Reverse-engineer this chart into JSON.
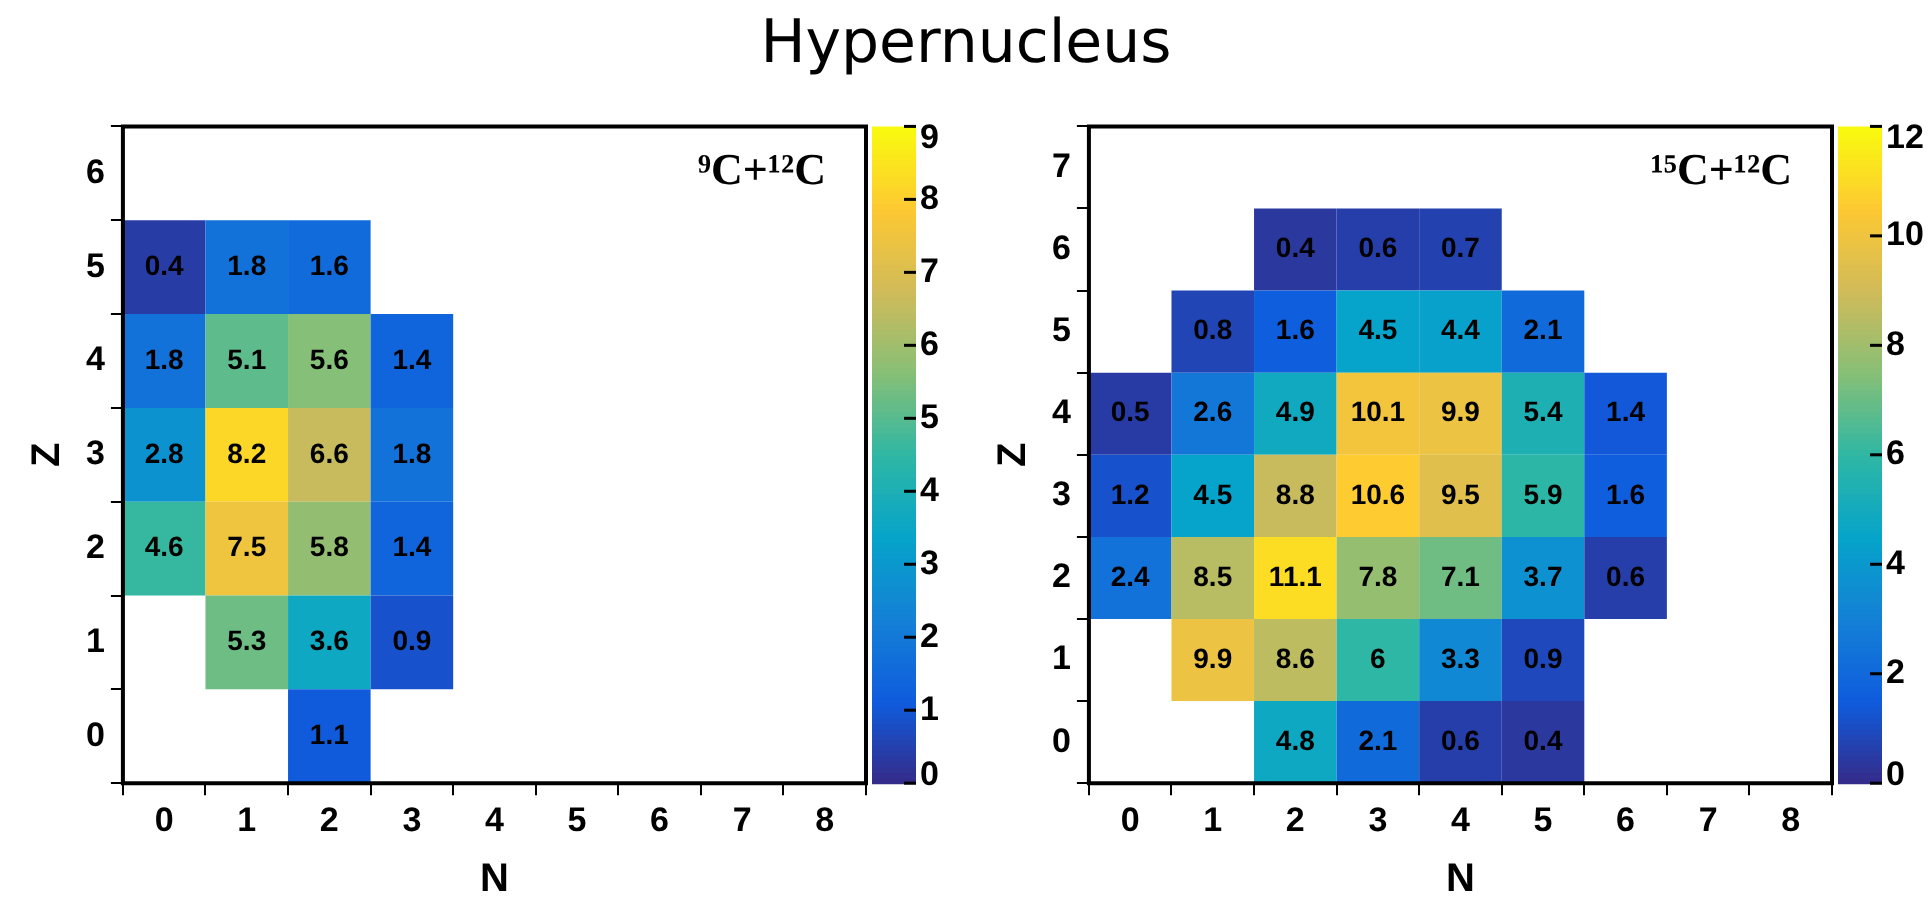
{
  "chart_data": [
    {
      "type": "heatmap",
      "title": "Hypernucleus",
      "xlabel": "N",
      "ylabel": "Z",
      "annotations": [
        "⁹C+¹²C"
      ],
      "data_labels": true,
      "grid": false,
      "categories": [
        "0",
        "1",
        "2",
        "3",
        "4",
        "5",
        "6",
        "7",
        "8"
      ],
      "y_categories": [
        "6",
        "5",
        "4",
        "3",
        "2",
        "1",
        "0"
      ],
      "cells": [
        [
          null,
          null,
          null,
          null,
          null,
          null,
          null,
          null,
          null
        ],
        [
          0.4,
          1.8,
          1.6,
          null,
          null,
          null,
          null,
          null,
          null
        ],
        [
          1.8,
          5.1,
          5.6,
          1.4,
          null,
          null,
          null,
          null,
          null
        ],
        [
          2.8,
          8.2,
          6.6,
          1.8,
          null,
          null,
          null,
          null,
          null
        ],
        [
          4.6,
          7.5,
          5.8,
          1.4,
          null,
          null,
          null,
          null,
          null
        ],
        [
          null,
          5.3,
          3.6,
          0.9,
          null,
          null,
          null,
          null,
          null
        ],
        [
          null,
          null,
          1.1,
          null,
          null,
          null,
          null,
          null,
          null
        ]
      ],
      "clim": [
        0,
        9
      ],
      "cticks": [
        0,
        1,
        2,
        3,
        4,
        5,
        6,
        7,
        8,
        9
      ]
    },
    {
      "type": "heatmap",
      "xlabel": "N",
      "ylabel": "Z",
      "annotations": [
        "¹⁵C+¹²C"
      ],
      "data_labels": true,
      "grid": false,
      "categories": [
        "0",
        "1",
        "2",
        "3",
        "4",
        "5",
        "6",
        "7",
        "8"
      ],
      "y_categories": [
        "7",
        "6",
        "5",
        "4",
        "3",
        "2",
        "1",
        "0"
      ],
      "cells": [
        [
          null,
          null,
          null,
          null,
          null,
          null,
          null,
          null,
          null
        ],
        [
          null,
          null,
          0.4,
          0.6,
          0.7,
          null,
          null,
          null,
          null
        ],
        [
          null,
          0.8,
          1.6,
          4.5,
          4.4,
          2.1,
          null,
          null,
          null
        ],
        [
          0.5,
          2.6,
          4.9,
          10.1,
          9.9,
          5.4,
          1.4,
          null,
          null
        ],
        [
          1.2,
          4.5,
          8.8,
          10.6,
          9.5,
          5.9,
          1.6,
          null,
          null
        ],
        [
          2.4,
          8.5,
          11.1,
          7.8,
          7.1,
          3.7,
          0.6,
          null,
          null
        ],
        [
          null,
          9.9,
          8.6,
          6,
          3.3,
          0.9,
          null,
          null,
          null
        ],
        [
          null,
          null,
          4.8,
          2.1,
          0.6,
          0.4,
          null,
          null,
          null
        ]
      ],
      "clim": [
        0,
        12
      ],
      "cticks": [
        0,
        2,
        4,
        6,
        8,
        10,
        12
      ]
    }
  ]
}
